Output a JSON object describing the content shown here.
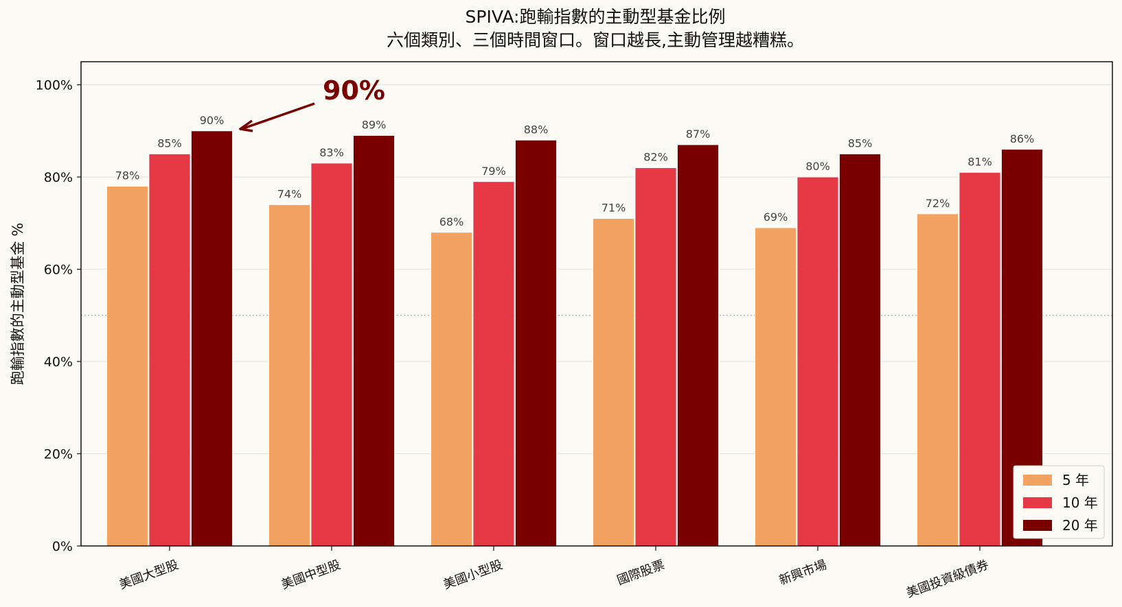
{
  "chart_data": {
    "type": "bar",
    "title": "SPIVA:跑輸指數的主動型基金比例",
    "subtitle": "六個類別、三個時間窗口。窗口越長,主動管理越糟糕。",
    "xlabel": "",
    "ylabel": "跑輸指數的主動型基金 %",
    "ylim": [
      0,
      105
    ],
    "yticks": [
      0,
      20,
      40,
      60,
      80,
      100
    ],
    "ytick_labels": [
      "0%",
      "20%",
      "40%",
      "60%",
      "80%",
      "100%"
    ],
    "grid": "horizontal",
    "reference_line": {
      "y": 50,
      "style": "dotted"
    },
    "categories": [
      "美國大型股",
      "美國中型股",
      "美國小型股",
      "國際股票",
      "新興市場",
      "美國投資級債券"
    ],
    "series": [
      {
        "name": "5 年",
        "color": "#f2a261",
        "values": [
          78,
          74,
          68,
          71,
          69,
          72
        ],
        "labels": [
          "78%",
          "74%",
          "68%",
          "71%",
          "69%",
          "72%"
        ]
      },
      {
        "name": "10 年",
        "color": "#e63946",
        "values": [
          85,
          83,
          79,
          82,
          80,
          81
        ],
        "labels": [
          "85%",
          "83%",
          "79%",
          "82%",
          "80%",
          "81%"
        ]
      },
      {
        "name": "20 年",
        "color": "#7a0000",
        "values": [
          90,
          89,
          88,
          87,
          85,
          86
        ],
        "labels": [
          "90%",
          "89%",
          "88%",
          "87%",
          "85%",
          "86%"
        ]
      }
    ],
    "annotation": {
      "text": "90%",
      "points_to": {
        "category": "美國大型股",
        "series": "20 年",
        "value": 90
      }
    },
    "legend": {
      "position": "bottom-right"
    }
  }
}
